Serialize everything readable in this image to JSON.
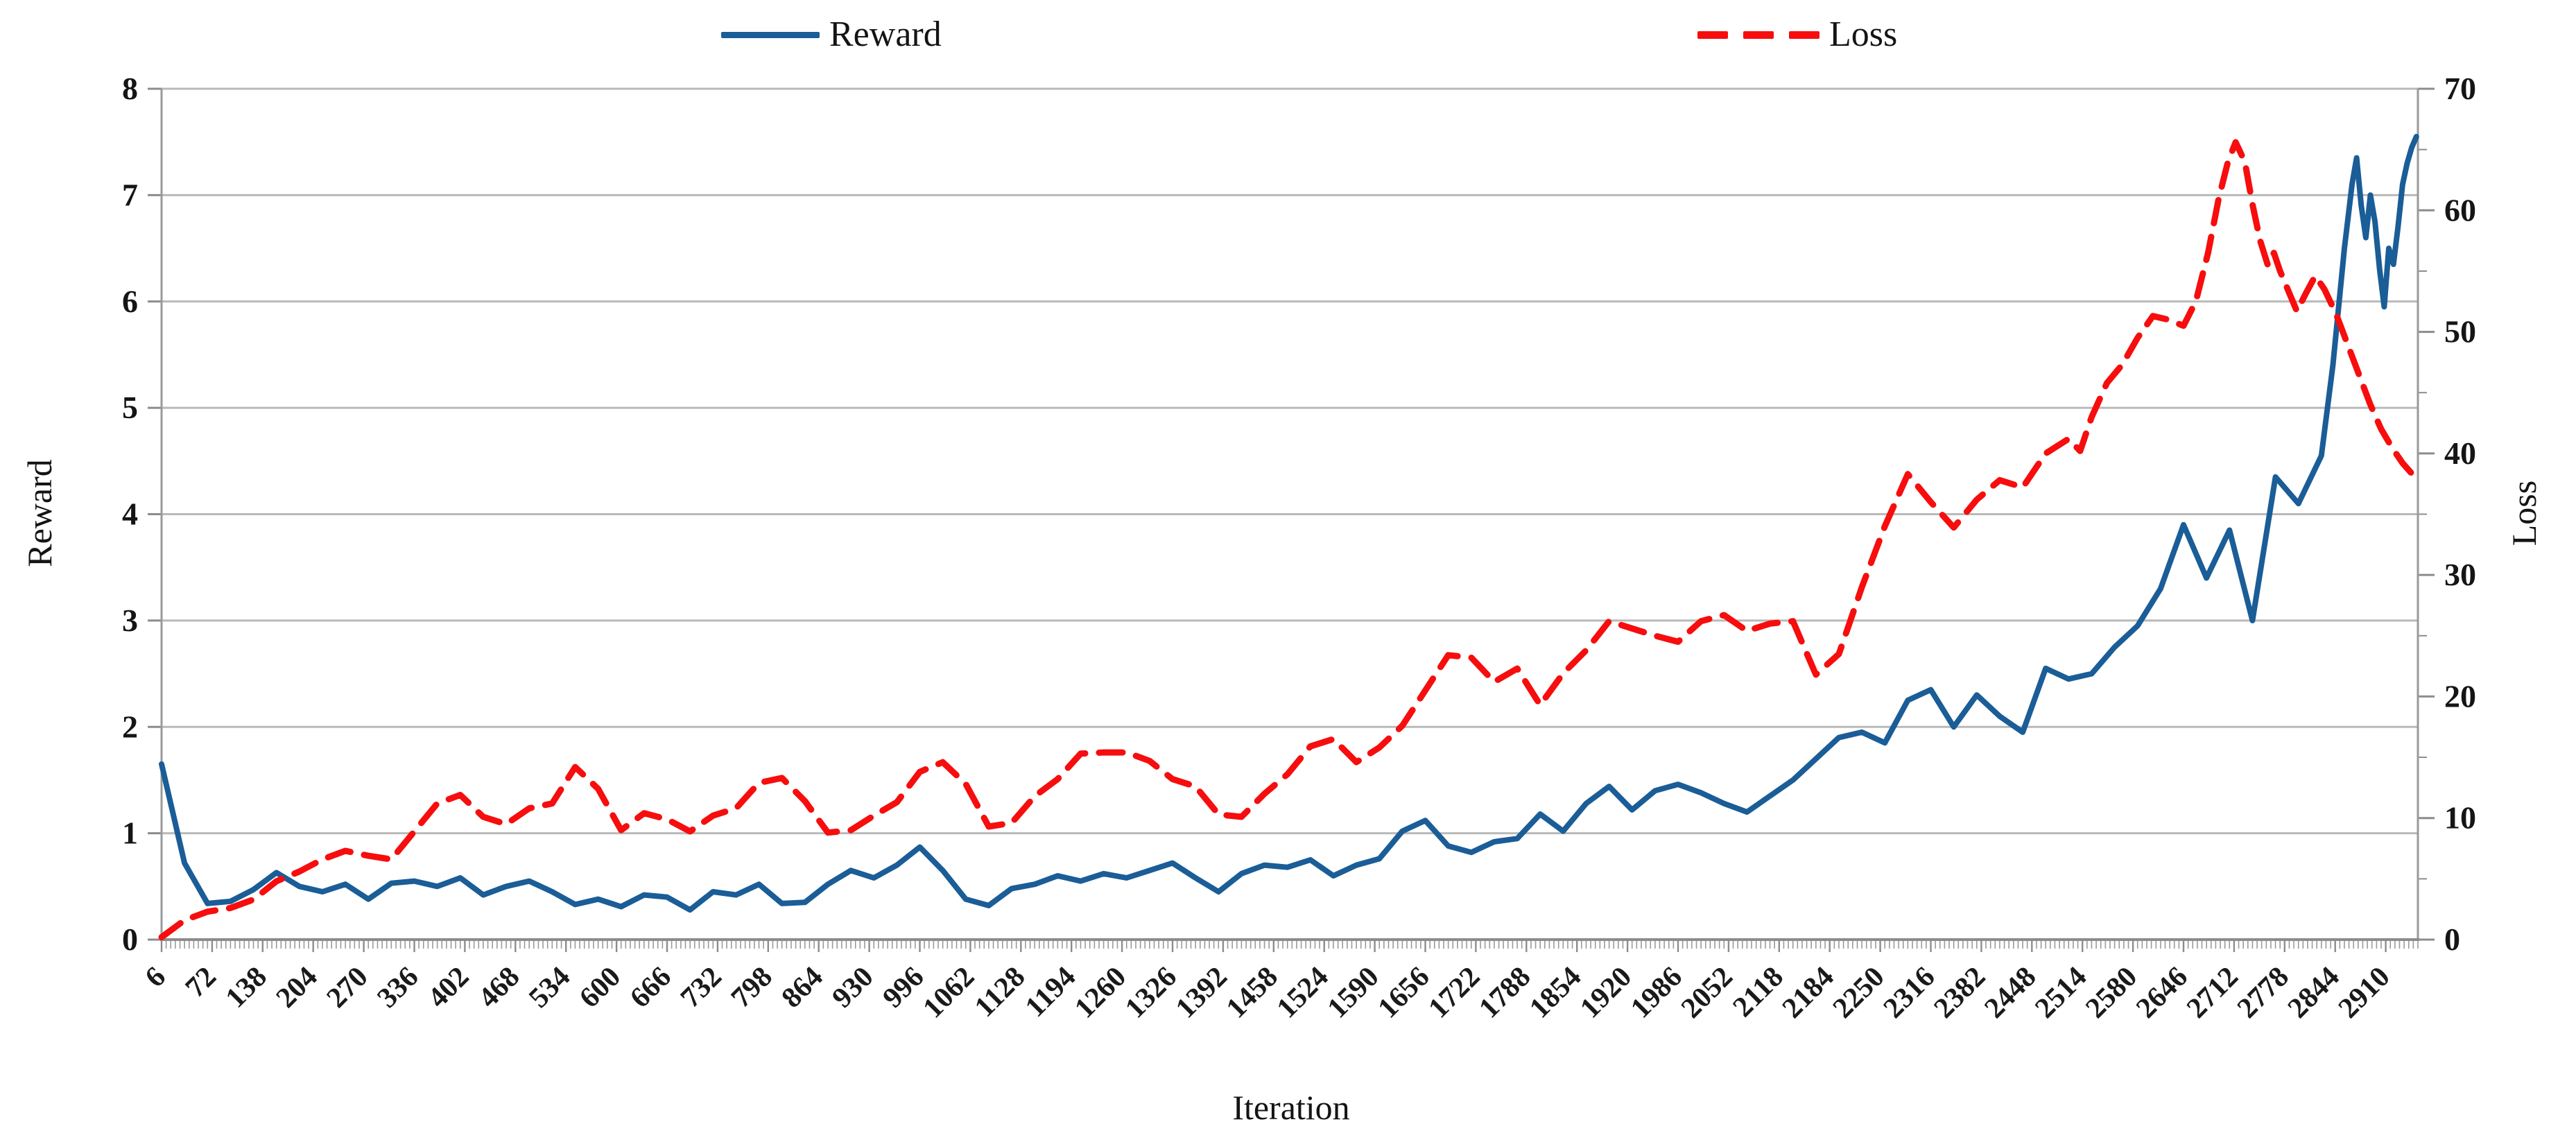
{
  "page": {
    "background": "#ffffff"
  },
  "legend": {
    "items": [
      {
        "label": "Reward",
        "color": "#1a5d97",
        "style": "solid"
      },
      {
        "label": "Loss",
        "color": "#f70d0d",
        "style": "dashed"
      }
    ]
  },
  "chart_data": {
    "type": "line",
    "title": "",
    "legend_position": "top",
    "grid": true,
    "x_axis": {
      "title": "Iteration",
      "min": 6,
      "max": 2952,
      "label_start": 6,
      "label_step": 66,
      "label_end": 2910,
      "minor_step": 6
    },
    "left_axis": {
      "title": "Reward",
      "min": 0,
      "max": 8,
      "step": 1
    },
    "right_axis": {
      "title": "Loss",
      "min": 0,
      "max": 70,
      "step": 10,
      "minor_step": 5
    },
    "colors": {
      "grid": "#b9b9b9",
      "axis": "#9a9a9a",
      "bottom_axis": "#8c8c8c",
      "tick": "#8c8c8c",
      "text": "#151515"
    },
    "series": [
      {
        "name": "Reward",
        "axis": "left",
        "color": "#1a5d97",
        "dash": null,
        "width": 8,
        "x": [
          6,
          36,
          66,
          96,
          126,
          156,
          186,
          216,
          246,
          276,
          306,
          336,
          366,
          396,
          426,
          456,
          486,
          516,
          546,
          576,
          606,
          636,
          666,
          696,
          726,
          756,
          786,
          816,
          846,
          876,
          906,
          936,
          966,
          996,
          1026,
          1056,
          1086,
          1116,
          1146,
          1176,
          1206,
          1236,
          1266,
          1296,
          1326,
          1356,
          1386,
          1416,
          1446,
          1476,
          1506,
          1536,
          1566,
          1596,
          1626,
          1656,
          1686,
          1716,
          1746,
          1776,
          1806,
          1836,
          1866,
          1896,
          1926,
          1956,
          1986,
          2016,
          2046,
          2076,
          2106,
          2136,
          2166,
          2196,
          2226,
          2256,
          2286,
          2316,
          2346,
          2376,
          2406,
          2436,
          2466,
          2496,
          2526,
          2556,
          2586,
          2616,
          2646,
          2676,
          2706,
          2736,
          2766,
          2796,
          2826,
          2841,
          2856,
          2866,
          2872,
          2878,
          2884,
          2890,
          2896,
          2902,
          2908,
          2914,
          2920,
          2926,
          2932,
          2938,
          2944,
          2950
        ],
        "y": [
          1.65,
          0.72,
          0.34,
          0.36,
          0.47,
          0.63,
          0.5,
          0.45,
          0.52,
          0.38,
          0.53,
          0.55,
          0.5,
          0.58,
          0.42,
          0.5,
          0.55,
          0.45,
          0.33,
          0.38,
          0.31,
          0.42,
          0.4,
          0.28,
          0.45,
          0.42,
          0.52,
          0.34,
          0.35,
          0.52,
          0.65,
          0.58,
          0.7,
          0.87,
          0.65,
          0.38,
          0.32,
          0.48,
          0.52,
          0.6,
          0.55,
          0.62,
          0.58,
          0.65,
          0.72,
          0.58,
          0.45,
          0.62,
          0.7,
          0.68,
          0.75,
          0.6,
          0.7,
          0.76,
          1.02,
          1.12,
          0.88,
          0.82,
          0.92,
          0.95,
          1.18,
          1.02,
          1.28,
          1.44,
          1.22,
          1.4,
          1.46,
          1.38,
          1.28,
          1.2,
          1.35,
          1.5,
          1.7,
          1.9,
          1.95,
          1.85,
          2.25,
          2.35,
          2.0,
          2.3,
          2.1,
          1.95,
          2.55,
          2.45,
          2.5,
          2.75,
          2.95,
          3.3,
          3.9,
          3.4,
          3.85,
          3.0,
          4.35,
          4.1,
          4.55,
          5.4,
          6.5,
          7.1,
          7.35,
          6.9,
          6.6,
          7.0,
          6.75,
          6.3,
          5.95,
          6.5,
          6.35,
          6.7,
          7.1,
          7.3,
          7.45,
          7.55
        ]
      },
      {
        "name": "Loss",
        "axis": "right",
        "color": "#f70d0d",
        "dash": [
          34,
          20
        ],
        "width": 9,
        "x": [
          6,
          36,
          66,
          96,
          126,
          156,
          186,
          216,
          246,
          276,
          306,
          336,
          366,
          396,
          426,
          456,
          486,
          516,
          546,
          576,
          606,
          636,
          666,
          696,
          726,
          756,
          786,
          816,
          846,
          876,
          906,
          936,
          966,
          996,
          1026,
          1056,
          1086,
          1116,
          1146,
          1176,
          1206,
          1236,
          1266,
          1296,
          1326,
          1356,
          1386,
          1416,
          1446,
          1476,
          1506,
          1536,
          1566,
          1596,
          1626,
          1656,
          1686,
          1716,
          1746,
          1776,
          1806,
          1836,
          1866,
          1896,
          1926,
          1956,
          1986,
          2016,
          2046,
          2076,
          2106,
          2136,
          2166,
          2196,
          2226,
          2256,
          2286,
          2316,
          2346,
          2376,
          2406,
          2436,
          2466,
          2496,
          2511,
          2526,
          2546,
          2566,
          2586,
          2606,
          2626,
          2646,
          2662,
          2678,
          2692,
          2704,
          2714,
          2726,
          2736,
          2746,
          2756,
          2764,
          2772,
          2782,
          2794,
          2806,
          2818,
          2830,
          2845,
          2860,
          2875,
          2890,
          2904,
          2918,
          2932,
          2946
        ],
        "y": [
          0.2,
          1.6,
          2.3,
          2.6,
          3.3,
          4.8,
          5.6,
          6.6,
          7.3,
          6.9,
          6.6,
          8.9,
          11.2,
          11.9,
          10.1,
          9.5,
          10.8,
          11.2,
          14.2,
          12.4,
          9.0,
          10.4,
          9.9,
          8.9,
          10.2,
          10.8,
          12.9,
          13.3,
          11.4,
          8.8,
          9.0,
          10.2,
          11.3,
          13.8,
          14.6,
          12.8,
          9.3,
          9.6,
          11.8,
          13.2,
          15.3,
          15.4,
          15.4,
          14.7,
          13.2,
          12.6,
          10.3,
          10.1,
          12.0,
          13.6,
          15.9,
          16.5,
          14.6,
          15.8,
          17.6,
          20.5,
          23.4,
          23.2,
          21.2,
          22.3,
          19.3,
          21.9,
          23.8,
          26.2,
          25.6,
          25.0,
          24.5,
          26.2,
          26.7,
          25.4,
          26.0,
          26.2,
          21.8,
          23.5,
          29.0,
          34.0,
          38.3,
          36.0,
          33.9,
          36.2,
          37.8,
          37.2,
          40.0,
          41.2,
          40.2,
          43.0,
          45.8,
          47.3,
          49.5,
          51.3,
          51.0,
          50.5,
          52.5,
          56.5,
          61.0,
          64.0,
          65.6,
          64.0,
          60.5,
          57.5,
          55.5,
          56.5,
          55.0,
          53.5,
          51.7,
          53.2,
          54.6,
          53.5,
          51.5,
          49.0,
          46.5,
          44.0,
          42.0,
          40.5,
          39.2,
          38.2
        ]
      }
    ]
  }
}
